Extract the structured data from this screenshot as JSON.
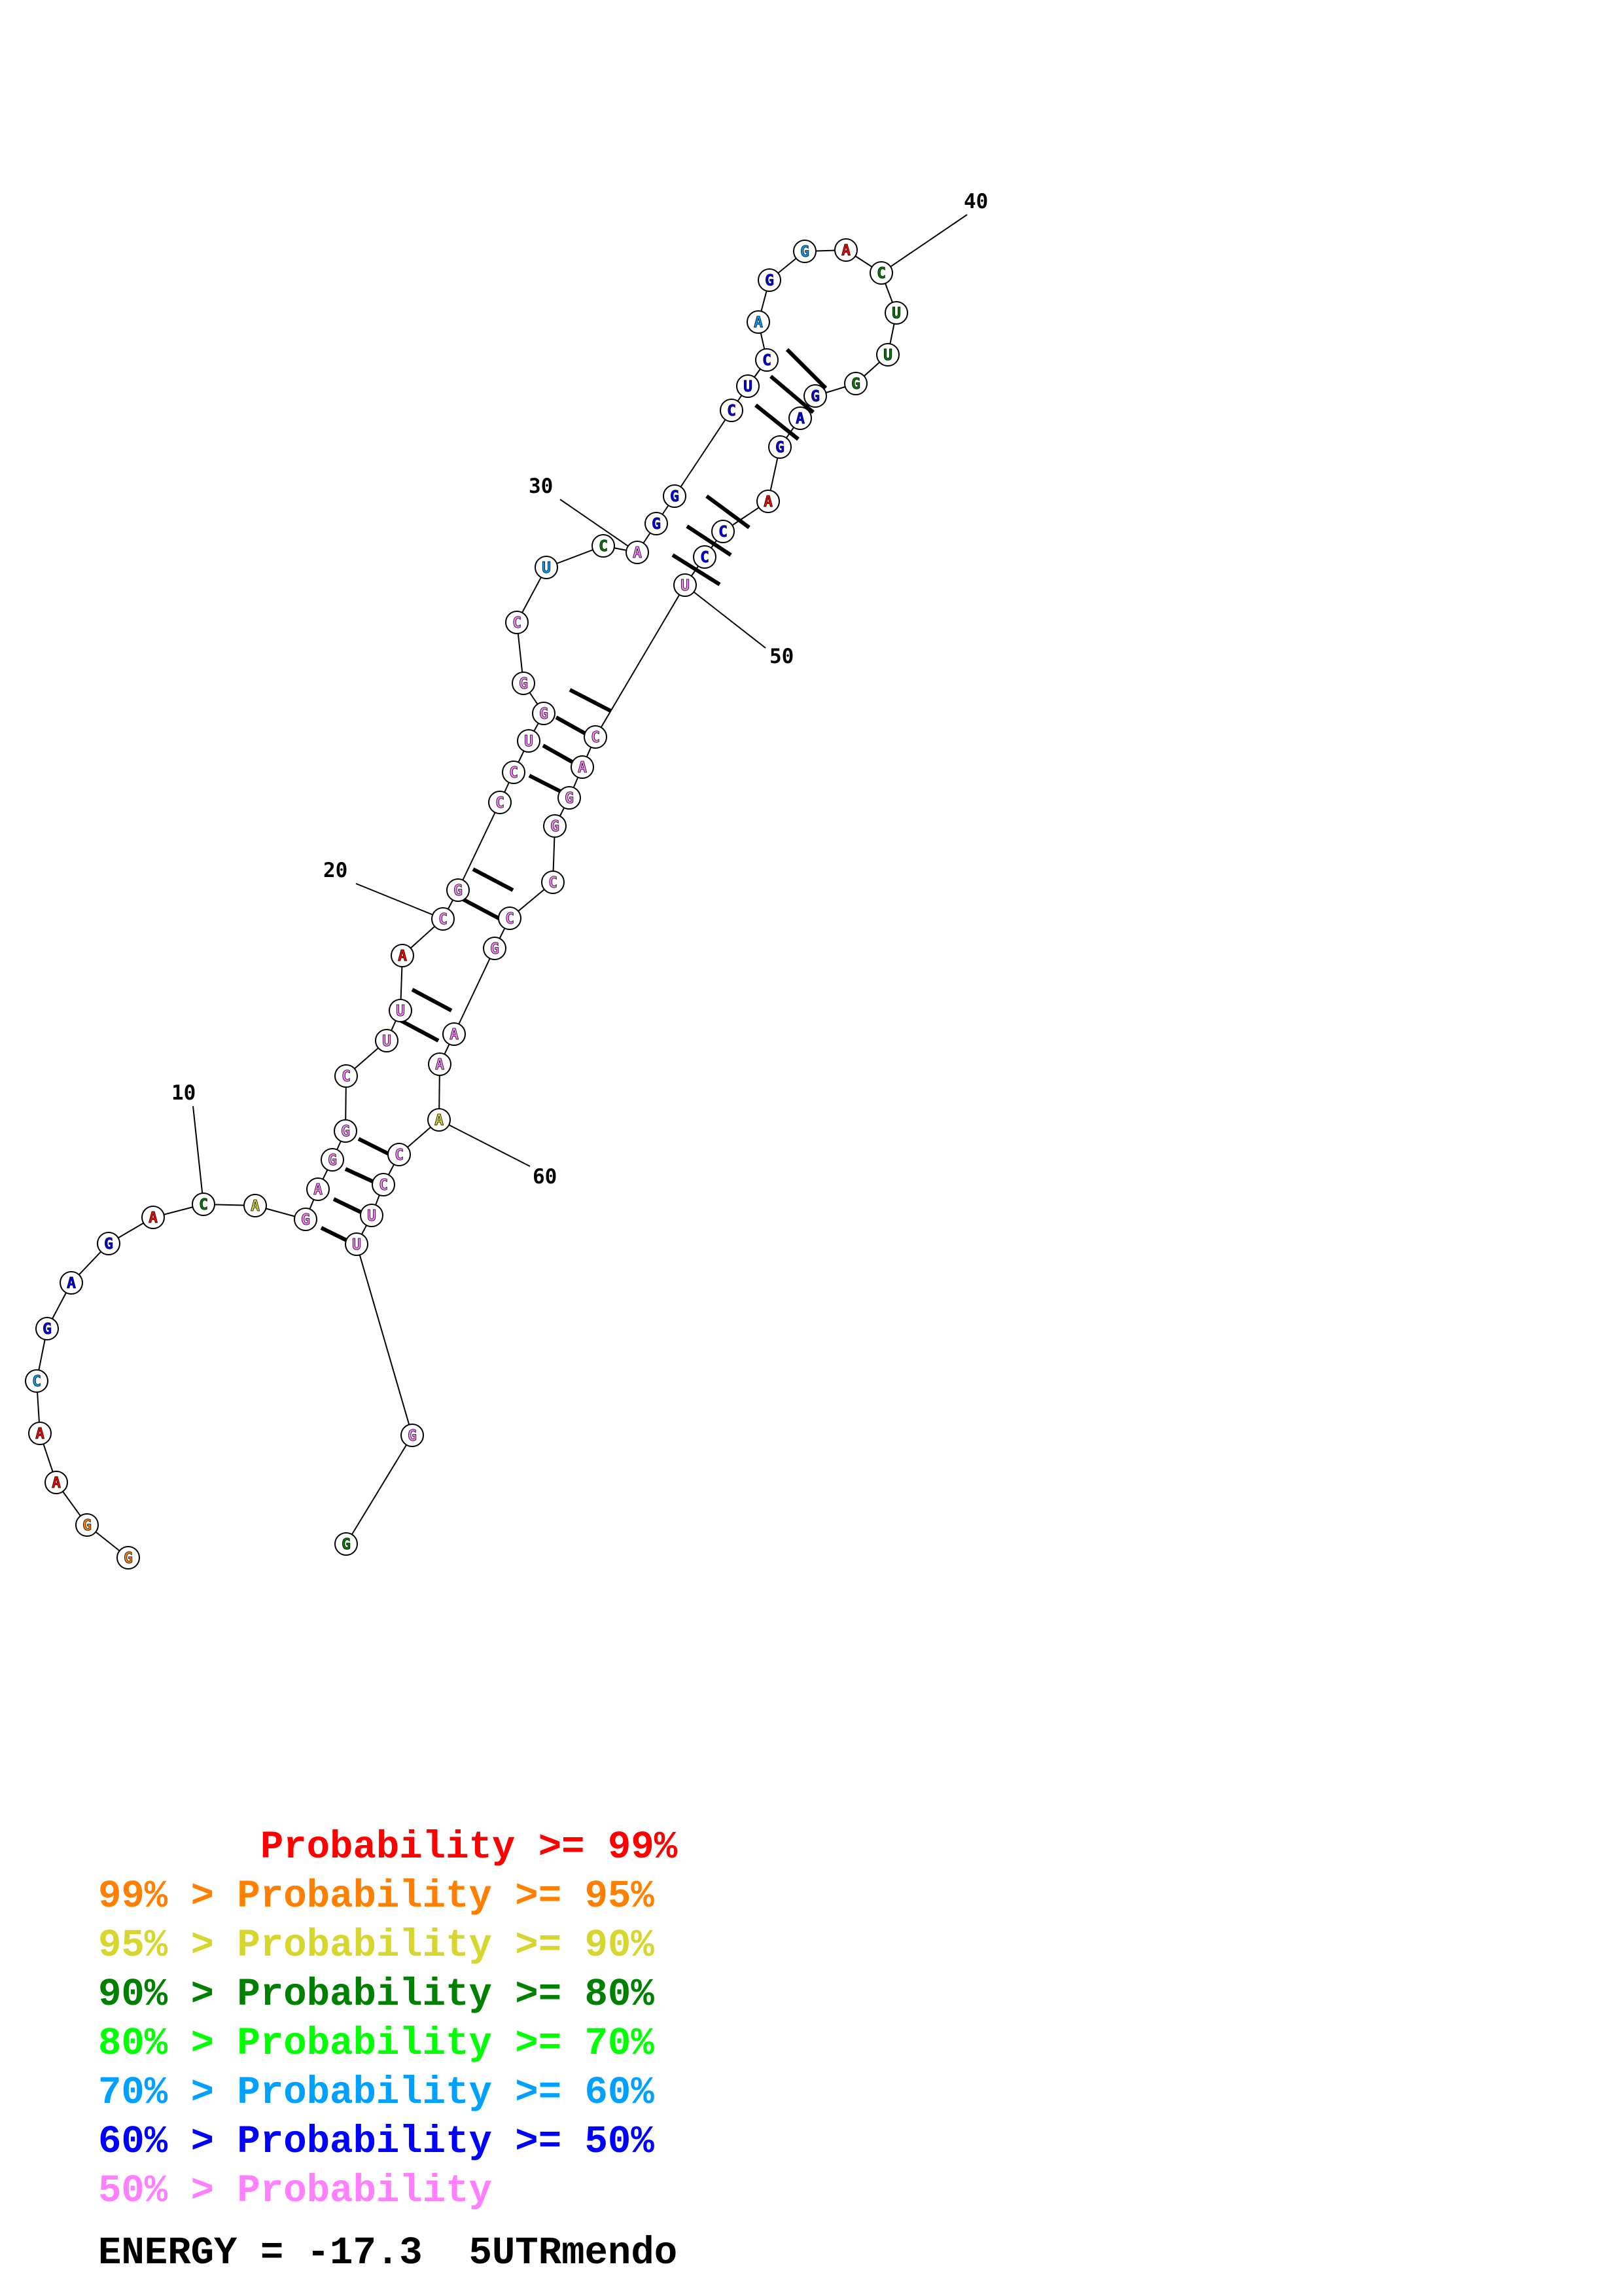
{
  "colors": {
    "p99": "#ff0000",
    "p95": "#ff8000",
    "p90": "#d6d62e",
    "p80": "#008000",
    "p70": "#00ff00",
    "p60": "#00a0ff",
    "p50": "#0000ff",
    "plow": "#ff80ff"
  },
  "structure": {
    "nucleotides": [
      {
        "n": 1,
        "base": "G",
        "cls": "p95"
      },
      {
        "n": 2,
        "base": "G",
        "cls": "p95"
      },
      {
        "n": 3,
        "base": "A",
        "cls": "p99"
      },
      {
        "n": 4,
        "base": "A",
        "cls": "p99"
      },
      {
        "n": 5,
        "base": "C",
        "cls": "p60"
      },
      {
        "n": 6,
        "base": "G",
        "cls": "p50"
      },
      {
        "n": 7,
        "base": "A",
        "cls": "p50"
      },
      {
        "n": 8,
        "base": "G",
        "cls": "p50"
      },
      {
        "n": 9,
        "base": "A",
        "cls": "p99"
      },
      {
        "n": 10,
        "base": "C",
        "cls": "p80"
      },
      {
        "n": 11,
        "base": "A",
        "cls": "p90"
      },
      {
        "n": 12,
        "base": "G",
        "cls": "plow"
      },
      {
        "n": 13,
        "base": "A",
        "cls": "plow"
      },
      {
        "n": 14,
        "base": "G",
        "cls": "plow"
      },
      {
        "n": 15,
        "base": "G",
        "cls": "plow"
      },
      {
        "n": 16,
        "base": "C",
        "cls": "plow"
      },
      {
        "n": 17,
        "base": "U",
        "cls": "plow"
      },
      {
        "n": 18,
        "base": "U",
        "cls": "plow"
      },
      {
        "n": 19,
        "base": "A",
        "cls": "p99"
      },
      {
        "n": 20,
        "base": "C",
        "cls": "plow"
      },
      {
        "n": 21,
        "base": "G",
        "cls": "plow"
      },
      {
        "n": 22,
        "base": "C",
        "cls": "plow"
      },
      {
        "n": 23,
        "base": "C",
        "cls": "plow"
      },
      {
        "n": 24,
        "base": "U",
        "cls": "plow"
      },
      {
        "n": 25,
        "base": "G",
        "cls": "plow"
      },
      {
        "n": 26,
        "base": "G",
        "cls": "plow"
      },
      {
        "n": 27,
        "base": "C",
        "cls": "plow"
      },
      {
        "n": 28,
        "base": "U",
        "cls": "p60"
      },
      {
        "n": 29,
        "base": "C",
        "cls": "p80"
      },
      {
        "n": 30,
        "base": "A",
        "cls": "plow"
      },
      {
        "n": 31,
        "base": "G",
        "cls": "p50"
      },
      {
        "n": 32,
        "base": "G",
        "cls": "p50"
      },
      {
        "n": 33,
        "base": "C",
        "cls": "p50"
      },
      {
        "n": 34,
        "base": "U",
        "cls": "p50"
      },
      {
        "n": 35,
        "base": "C",
        "cls": "p50"
      },
      {
        "n": 36,
        "base": "A",
        "cls": "p60"
      },
      {
        "n": 37,
        "base": "G",
        "cls": "p50"
      },
      {
        "n": 38,
        "base": "G",
        "cls": "p60"
      },
      {
        "n": 39,
        "base": "A",
        "cls": "p99"
      },
      {
        "n": 40,
        "base": "C",
        "cls": "p80"
      },
      {
        "n": 41,
        "base": "U",
        "cls": "p80"
      },
      {
        "n": 42,
        "base": "U",
        "cls": "p80"
      },
      {
        "n": 43,
        "base": "G",
        "cls": "p80"
      },
      {
        "n": 44,
        "base": "G",
        "cls": "p50"
      },
      {
        "n": 45,
        "base": "A",
        "cls": "p50"
      },
      {
        "n": 46,
        "base": "G",
        "cls": "p50"
      },
      {
        "n": 47,
        "base": "A",
        "cls": "p99"
      },
      {
        "n": 48,
        "base": "C",
        "cls": "p50"
      },
      {
        "n": 49,
        "base": "C",
        "cls": "p50"
      },
      {
        "n": 50,
        "base": "U",
        "cls": "plow"
      },
      {
        "n": 51,
        "base": "C",
        "cls": "plow"
      },
      {
        "n": 52,
        "base": "A",
        "cls": "plow"
      },
      {
        "n": 53,
        "base": "G",
        "cls": "plow"
      },
      {
        "n": 54,
        "base": "G",
        "cls": "plow"
      },
      {
        "n": 55,
        "base": "C",
        "cls": "plow"
      },
      {
        "n": 56,
        "base": "C",
        "cls": "plow"
      },
      {
        "n": 57,
        "base": "G",
        "cls": "plow"
      },
      {
        "n": 58,
        "base": "A",
        "cls": "plow"
      },
      {
        "n": 59,
        "base": "A",
        "cls": "plow"
      },
      {
        "n": 60,
        "base": "A",
        "cls": "p90"
      },
      {
        "n": 61,
        "base": "C",
        "cls": "plow"
      },
      {
        "n": 62,
        "base": "C",
        "cls": "plow"
      },
      {
        "n": 63,
        "base": "U",
        "cls": "plow"
      },
      {
        "n": 64,
        "base": "U",
        "cls": "plow"
      },
      {
        "n": 65,
        "base": "G",
        "cls": "plow"
      },
      {
        "n": 66,
        "base": "G",
        "cls": "p80"
      }
    ],
    "pairs": [
      [
        12,
        64
      ],
      [
        13,
        63
      ],
      [
        14,
        62
      ],
      [
        15,
        61
      ],
      [
        17,
        59
      ],
      [
        18,
        58
      ],
      [
        21,
        57
      ],
      [
        22,
        56
      ],
      [
        24,
        54
      ],
      [
        25,
        53
      ],
      [
        26,
        52
      ],
      [
        27,
        51
      ],
      [
        31,
        49
      ],
      [
        32,
        48
      ],
      [
        33,
        47
      ],
      [
        34,
        46
      ],
      [
        35,
        45
      ],
      [
        36,
        44
      ]
    ],
    "position_labels": [
      "10",
      "20",
      "30",
      "40",
      "50",
      "60"
    ]
  },
  "legend": {
    "lines": [
      {
        "text": "       Probability >= 99%",
        "cls": "p99"
      },
      {
        "text": "99% > Probability >= 95%",
        "cls": "p95"
      },
      {
        "text": "95% > Probability >= 90%",
        "cls": "p90"
      },
      {
        "text": "90% > Probability >= 80%",
        "cls": "p80"
      },
      {
        "text": "80% > Probability >= 70%",
        "cls": "p70"
      },
      {
        "text": "70% > Probability >= 60%",
        "cls": "p60"
      },
      {
        "text": "60% > Probability >= 50%",
        "cls": "p50"
      },
      {
        "text": "50% > Probability",
        "cls": "plow"
      }
    ],
    "energy_text": "ENERGY = -17.3  5UTRmendo"
  }
}
